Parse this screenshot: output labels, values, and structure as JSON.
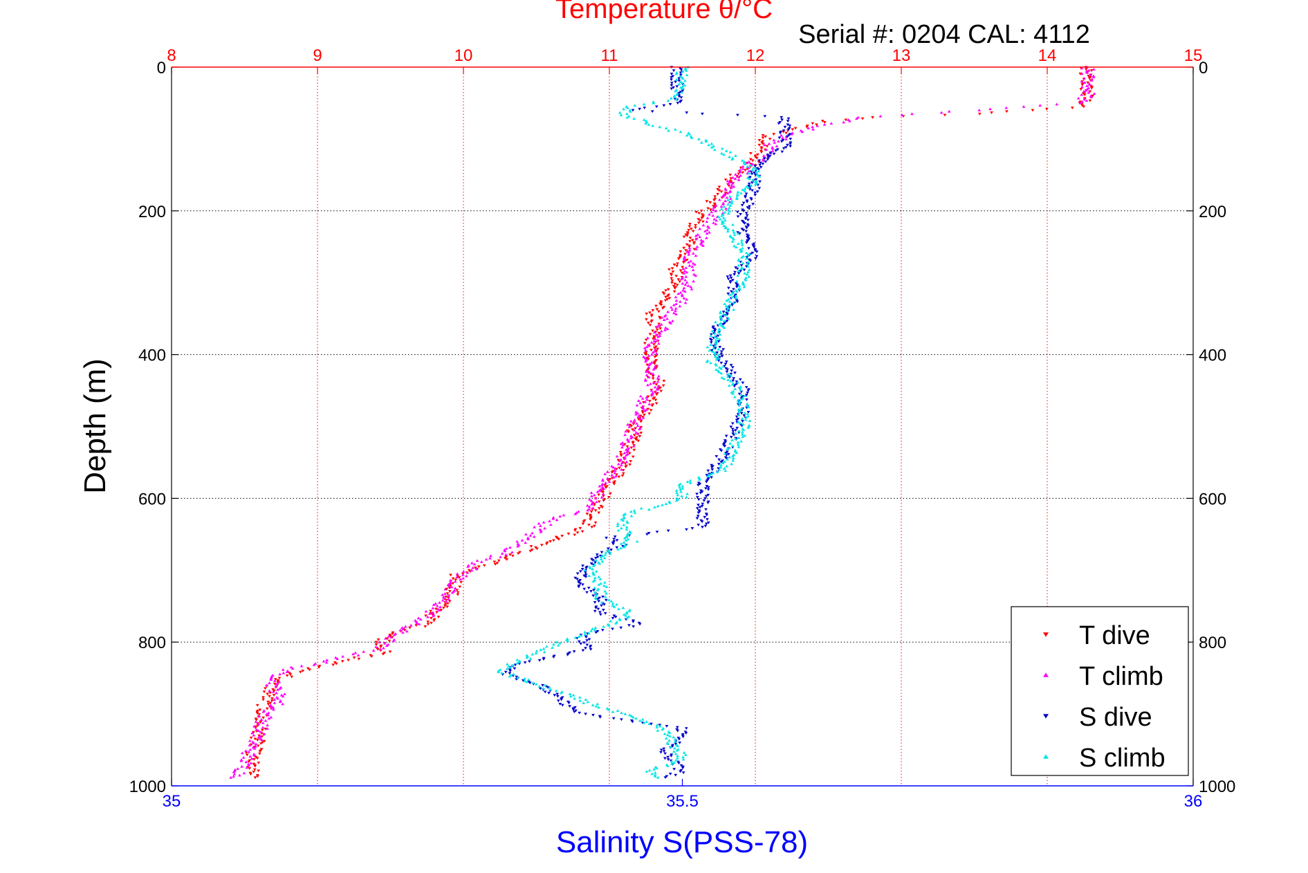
{
  "chart_data": {
    "type": "scatter",
    "title": "Temperature θ/°C",
    "subtitle": "Serial #: 0204  CAL: 4112",
    "ylabel": "Depth (m)",
    "xlabel_bottom": "Salinity S(PSS-78)",
    "temperature_axis": {
      "range": [
        8,
        15
      ],
      "ticks": [
        "8",
        "9",
        "10",
        "11",
        "12",
        "13",
        "14",
        "15"
      ],
      "color": "#ff0000"
    },
    "salinity_axis": {
      "range": [
        35,
        36
      ],
      "ticks": [
        "35",
        "35.5",
        "36"
      ],
      "color": "#0000ff"
    },
    "depth_axis": {
      "range": [
        0,
        1000
      ],
      "reversed": true,
      "ticks": [
        "0",
        "200",
        "400",
        "600",
        "800",
        "1000"
      ]
    },
    "grid": true,
    "legend_placement": "bottom-right",
    "series": [
      {
        "name": "T dive",
        "variable": "temperature",
        "color": "#ff0000",
        "marker": "triangle-down",
        "profile": [
          [
            0,
            14.25
          ],
          [
            20,
            14.27
          ],
          [
            40,
            14.27
          ],
          [
            55,
            14.25
          ],
          [
            65,
            13.5
          ],
          [
            70,
            12.8
          ],
          [
            75,
            12.5
          ],
          [
            85,
            12.3
          ],
          [
            95,
            12.1
          ],
          [
            110,
            12.05
          ],
          [
            125,
            12.0
          ],
          [
            140,
            11.95
          ],
          [
            150,
            11.85
          ],
          [
            165,
            11.8
          ],
          [
            180,
            11.75
          ],
          [
            190,
            11.7
          ],
          [
            200,
            11.65
          ],
          [
            215,
            11.6
          ],
          [
            230,
            11.55
          ],
          [
            250,
            11.55
          ],
          [
            265,
            11.52
          ],
          [
            280,
            11.45
          ],
          [
            300,
            11.45
          ],
          [
            320,
            11.4
          ],
          [
            340,
            11.3
          ],
          [
            370,
            11.3
          ],
          [
            400,
            11.28
          ],
          [
            430,
            11.3
          ],
          [
            440,
            11.35
          ],
          [
            460,
            11.3
          ],
          [
            490,
            11.2
          ],
          [
            520,
            11.15
          ],
          [
            550,
            11.1
          ],
          [
            570,
            11.05
          ],
          [
            585,
            11.0
          ],
          [
            600,
            10.95
          ],
          [
            620,
            10.9
          ],
          [
            640,
            10.85
          ],
          [
            660,
            10.6
          ],
          [
            675,
            10.4
          ],
          [
            690,
            10.2
          ],
          [
            705,
            9.95
          ],
          [
            720,
            9.95
          ],
          [
            740,
            9.9
          ],
          [
            760,
            9.8
          ],
          [
            775,
            9.75
          ],
          [
            790,
            9.5
          ],
          [
            800,
            9.45
          ],
          [
            815,
            9.45
          ],
          [
            830,
            9.1
          ],
          [
            840,
            8.9
          ],
          [
            855,
            8.7
          ],
          [
            880,
            8.65
          ],
          [
            910,
            8.6
          ],
          [
            930,
            8.6
          ],
          [
            960,
            8.55
          ],
          [
            990,
            8.55
          ]
        ]
      },
      {
        "name": "T climb",
        "variable": "temperature",
        "color": "#ff00ff",
        "marker": "triangle-up",
        "profile": [
          [
            0,
            14.27
          ],
          [
            20,
            14.28
          ],
          [
            40,
            14.28
          ],
          [
            50,
            14.2
          ],
          [
            60,
            13.5
          ],
          [
            70,
            12.7
          ],
          [
            80,
            12.5
          ],
          [
            95,
            12.2
          ],
          [
            110,
            12.1
          ],
          [
            125,
            12.05
          ],
          [
            140,
            11.95
          ],
          [
            160,
            11.85
          ],
          [
            180,
            11.8
          ],
          [
            200,
            11.75
          ],
          [
            215,
            11.7
          ],
          [
            230,
            11.65
          ],
          [
            250,
            11.6
          ],
          [
            270,
            11.55
          ],
          [
            290,
            11.55
          ],
          [
            320,
            11.5
          ],
          [
            350,
            11.4
          ],
          [
            380,
            11.3
          ],
          [
            400,
            11.28
          ],
          [
            430,
            11.3
          ],
          [
            450,
            11.28
          ],
          [
            480,
            11.2
          ],
          [
            510,
            11.15
          ],
          [
            540,
            11.1
          ],
          [
            560,
            11.05
          ],
          [
            580,
            10.95
          ],
          [
            600,
            10.9
          ],
          [
            615,
            10.85
          ],
          [
            630,
            10.6
          ],
          [
            645,
            10.5
          ],
          [
            660,
            10.4
          ],
          [
            675,
            10.3
          ],
          [
            690,
            10.1
          ],
          [
            705,
            10.0
          ],
          [
            725,
            9.9
          ],
          [
            745,
            9.85
          ],
          [
            765,
            9.75
          ],
          [
            780,
            9.6
          ],
          [
            795,
            9.5
          ],
          [
            810,
            9.4
          ],
          [
            825,
            9.1
          ],
          [
            840,
            8.75
          ],
          [
            860,
            8.7
          ],
          [
            880,
            8.75
          ],
          [
            900,
            8.65
          ],
          [
            925,
            8.6
          ],
          [
            945,
            8.55
          ],
          [
            970,
            8.5
          ],
          [
            990,
            8.45
          ]
        ]
      },
      {
        "name": "S dive",
        "variable": "salinity",
        "color": "#0000cc",
        "marker": "triangle-down",
        "profile": [
          [
            0,
            35.495
          ],
          [
            30,
            35.495
          ],
          [
            50,
            35.5
          ],
          [
            60,
            35.45
          ],
          [
            70,
            35.6
          ],
          [
            85,
            35.6
          ],
          [
            95,
            35.6
          ],
          [
            110,
            35.6
          ],
          [
            130,
            35.58
          ],
          [
            150,
            35.57
          ],
          [
            170,
            35.57
          ],
          [
            200,
            35.56
          ],
          [
            230,
            35.56
          ],
          [
            260,
            35.57
          ],
          [
            290,
            35.55
          ],
          [
            320,
            35.55
          ],
          [
            350,
            35.54
          ],
          [
            380,
            35.53
          ],
          [
            410,
            35.54
          ],
          [
            430,
            35.55
          ],
          [
            450,
            35.56
          ],
          [
            480,
            35.56
          ],
          [
            510,
            35.55
          ],
          [
            540,
            35.54
          ],
          [
            560,
            35.53
          ],
          [
            580,
            35.52
          ],
          [
            600,
            35.52
          ],
          [
            620,
            35.52
          ],
          [
            640,
            35.52
          ],
          [
            655,
            35.43
          ],
          [
            665,
            35.44
          ],
          [
            680,
            35.42
          ],
          [
            700,
            35.4
          ],
          [
            720,
            35.4
          ],
          [
            740,
            35.42
          ],
          [
            760,
            35.42
          ],
          [
            775,
            35.46
          ],
          [
            790,
            35.4
          ],
          [
            810,
            35.41
          ],
          [
            830,
            35.34
          ],
          [
            845,
            35.33
          ],
          [
            860,
            35.36
          ],
          [
            880,
            35.38
          ],
          [
            900,
            35.4
          ],
          [
            920,
            35.5
          ],
          [
            935,
            35.5
          ],
          [
            950,
            35.48
          ],
          [
            965,
            35.49
          ],
          [
            980,
            35.5
          ],
          [
            990,
            35.48
          ]
        ]
      },
      {
        "name": "S climb",
        "variable": "salinity",
        "color": "#00e5e5",
        "marker": "triangle-up",
        "profile": [
          [
            0,
            35.5
          ],
          [
            30,
            35.5
          ],
          [
            45,
            35.49
          ],
          [
            55,
            35.45
          ],
          [
            65,
            35.44
          ],
          [
            80,
            35.47
          ],
          [
            95,
            35.51
          ],
          [
            110,
            35.53
          ],
          [
            125,
            35.55
          ],
          [
            140,
            35.57
          ],
          [
            160,
            35.57
          ],
          [
            180,
            35.55
          ],
          [
            210,
            35.54
          ],
          [
            230,
            35.55
          ],
          [
            260,
            35.56
          ],
          [
            290,
            35.56
          ],
          [
            320,
            35.55
          ],
          [
            350,
            35.54
          ],
          [
            380,
            35.53
          ],
          [
            410,
            35.53
          ],
          [
            440,
            35.55
          ],
          [
            470,
            35.56
          ],
          [
            500,
            35.56
          ],
          [
            530,
            35.55
          ],
          [
            560,
            35.54
          ],
          [
            580,
            35.5
          ],
          [
            600,
            35.5
          ],
          [
            620,
            35.45
          ],
          [
            640,
            35.44
          ],
          [
            660,
            35.45
          ],
          [
            680,
            35.42
          ],
          [
            700,
            35.41
          ],
          [
            720,
            35.42
          ],
          [
            740,
            35.42
          ],
          [
            760,
            35.45
          ],
          [
            780,
            35.42
          ],
          [
            800,
            35.38
          ],
          [
            820,
            35.35
          ],
          [
            840,
            35.32
          ],
          [
            860,
            35.36
          ],
          [
            880,
            35.4
          ],
          [
            900,
            35.44
          ],
          [
            920,
            35.48
          ],
          [
            940,
            35.49
          ],
          [
            960,
            35.5
          ],
          [
            980,
            35.47
          ],
          [
            990,
            35.48
          ]
        ]
      }
    ]
  }
}
